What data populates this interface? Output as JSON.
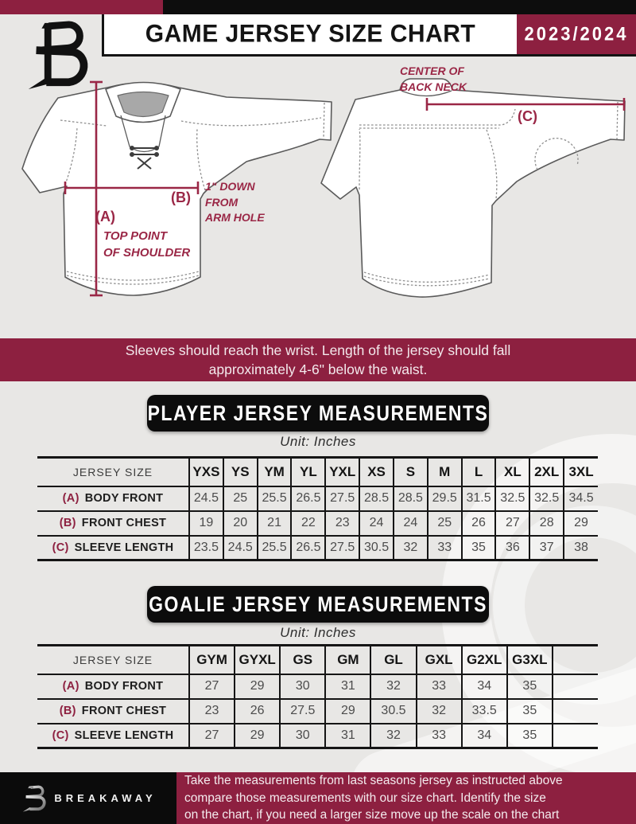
{
  "header": {
    "title": "GAME JERSEY SIZE CHART",
    "season": "2023/2024"
  },
  "diagram": {
    "label_a": "(A)",
    "label_b": "(B)",
    "label_c": "(C)",
    "note_shoulder": "TOP POINT\nOF SHOULDER",
    "note_armhole": "1\" DOWN\nFROM\nARM HOLE",
    "note_back_neck": "CENTER OF\nBACK NECK"
  },
  "notice": "Sleeves should reach the wrist. Length of the jersey should fall\napproximately 4-6\" below the waist.",
  "player_section": {
    "title": "PLAYER JERSEY MEASUREMENTS",
    "unit": "Unit: Inches",
    "table": {
      "corner_label": "JERSEY SIZE",
      "columns": [
        "YXS",
        "YS",
        "YM",
        "YL",
        "YXL",
        "XS",
        "S",
        "M",
        "L",
        "XL",
        "2XL",
        "3XL"
      ],
      "rows": [
        {
          "key": "(A)",
          "label": "BODY FRONT",
          "values": [
            "24.5",
            "25",
            "25.5",
            "26.5",
            "27.5",
            "28.5",
            "28.5",
            "29.5",
            "31.5",
            "32.5",
            "32.5",
            "34.5"
          ]
        },
        {
          "key": "(B)",
          "label": "FRONT CHEST",
          "values": [
            "19",
            "20",
            "21",
            "22",
            "23",
            "24",
            "24",
            "25",
            "26",
            "27",
            "28",
            "29"
          ]
        },
        {
          "key": "(C)",
          "label": "SLEEVE LENGTH",
          "values": [
            "23.5",
            "24.5",
            "25.5",
            "26.5",
            "27.5",
            "30.5",
            "32",
            "33",
            "35",
            "36",
            "37",
            "38"
          ]
        }
      ]
    }
  },
  "goalie_section": {
    "title": "GOALIE JERSEY MEASUREMENTS",
    "unit": "Unit: Inches",
    "table": {
      "corner_label": "JERSEY SIZE",
      "columns": [
        "GYM",
        "GYXL",
        "GS",
        "GM",
        "GL",
        "GXL",
        "G2XL",
        "G3XL",
        ""
      ],
      "rows": [
        {
          "key": "(A)",
          "label": "BODY FRONT",
          "values": [
            "27",
            "29",
            "30",
            "31",
            "32",
            "33",
            "34",
            "35",
            ""
          ]
        },
        {
          "key": "(B)",
          "label": "FRONT CHEST",
          "values": [
            "23",
            "26",
            "27.5",
            "29",
            "30.5",
            "32",
            "33.5",
            "35",
            ""
          ]
        },
        {
          "key": "(C)",
          "label": "SLEEVE LENGTH",
          "values": [
            "27",
            "29",
            "30",
            "31",
            "32",
            "33",
            "34",
            "35",
            ""
          ]
        }
      ]
    }
  },
  "footer": {
    "brand": "BREAKAWAY",
    "text": "Take the measurements from last seasons jersey as instructed above\ncompare those measurements  with our size chart. Identify the size\non the chart, if you need a larger size move up the scale on the chart"
  },
  "colors": {
    "maroon": "#8d2040",
    "black": "#0d0d0d",
    "background": "#e8e7e5",
    "annotation_maroon": "#9a2746"
  }
}
